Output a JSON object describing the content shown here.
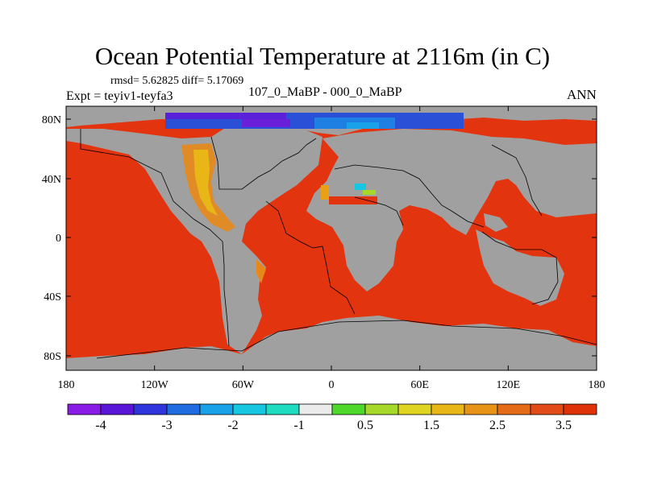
{
  "title": "Ocean Potential Temperature at 2116m (in C)",
  "stats": "rmsd= 5.62825 diff= 5.17069",
  "experiment": "Expt = teyiv1-teyfa3",
  "comparison": "107_0_MaBP - 000_0_MaBP",
  "season": "ANN",
  "axes": {
    "x_ticks": [
      "180",
      "120W",
      "60W",
      "0",
      "60E",
      "120E",
      "180"
    ],
    "y_ticks": [
      "80N",
      "40N",
      "0",
      "40S",
      "80S"
    ]
  },
  "colorbar": {
    "colors": [
      "#8a1be6",
      "#5a16d8",
      "#2f35dc",
      "#1f6be0",
      "#1aa2e8",
      "#17c6e0",
      "#1ddcc0",
      "#ebebeb",
      "#4fd82c",
      "#a6d82a",
      "#dfd41f",
      "#e8b617",
      "#e69318",
      "#e46b18",
      "#e24a17",
      "#df3208"
    ],
    "labels": [
      "-4",
      "-3",
      "-2",
      "-1",
      "0.5",
      "1.5",
      "2.5",
      "3.5"
    ]
  },
  "colors": {
    "land": "#a0a0a0",
    "ocean_warm": "#e33410"
  }
}
